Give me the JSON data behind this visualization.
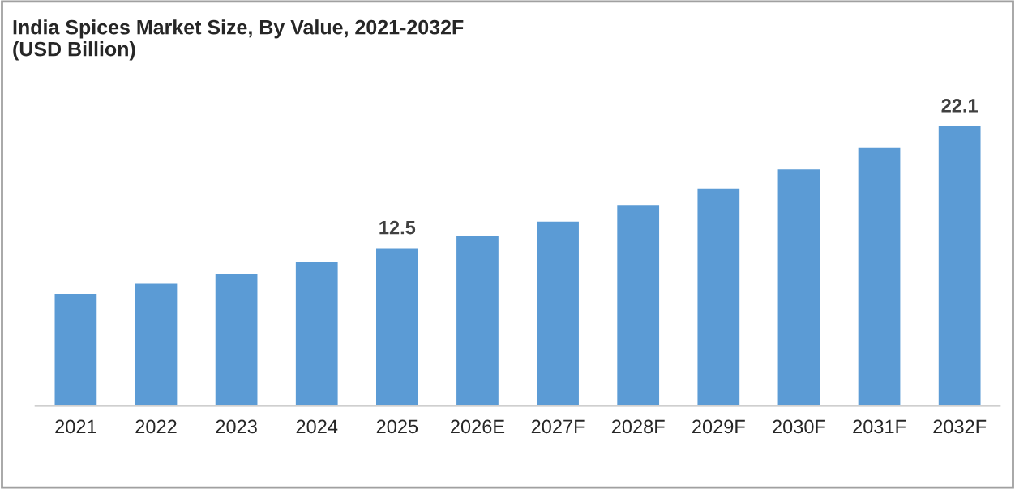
{
  "chart_data": {
    "type": "bar",
    "title": "India Spices Market Size, By Value, 2021-2032F\n(USD Billion)",
    "categories": [
      "2021",
      "2022",
      "2023",
      "2024",
      "2025",
      "2026E",
      "2027F",
      "2028F",
      "2029F",
      "2030F",
      "2031F",
      "2032F"
    ],
    "values": [
      8.9,
      9.7,
      10.5,
      11.4,
      12.5,
      13.5,
      14.6,
      15.9,
      17.2,
      18.7,
      20.4,
      22.1
    ],
    "value_labels": [
      null,
      null,
      null,
      null,
      "12.5",
      null,
      null,
      null,
      null,
      null,
      null,
      "22.1"
    ],
    "color": "#5b9bd5",
    "grid": false
  }
}
